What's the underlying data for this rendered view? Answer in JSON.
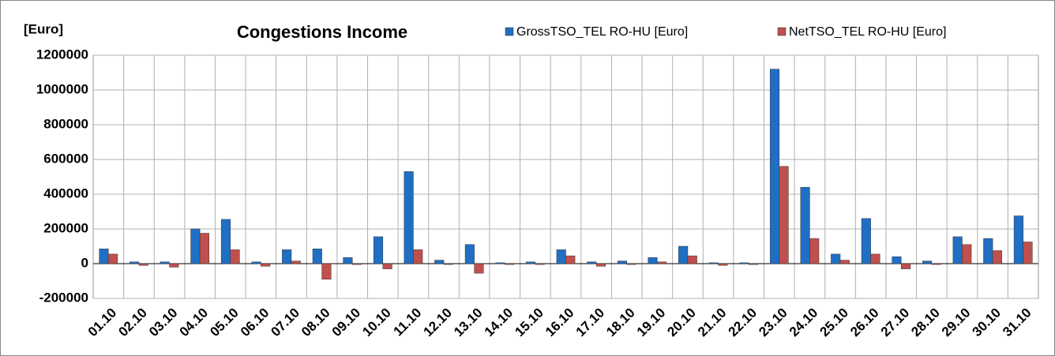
{
  "chart_data": {
    "type": "bar",
    "title": "Congestions Income",
    "y_label": "[Euro]",
    "categories": [
      "01.10",
      "02.10",
      "03.10",
      "04.10",
      "05.10",
      "06.10",
      "07.10",
      "08.10",
      "09.10",
      "10.10",
      "11.10",
      "12.10",
      "13.10",
      "14.10",
      "15.10",
      "16.10",
      "17.10",
      "18.10",
      "19.10",
      "20.10",
      "21.10",
      "22.10",
      "23.10",
      "24.10",
      "25.10",
      "26.10",
      "27.10",
      "28.10",
      "29.10",
      "30.10",
      "31.10"
    ],
    "series": [
      {
        "name": "GrossTSO_TEL RO-HU [Euro]",
        "color": "#1f6fc5",
        "values": [
          85000,
          10000,
          10000,
          200000,
          255000,
          10000,
          80000,
          85000,
          35000,
          155000,
          530000,
          20000,
          110000,
          5000,
          10000,
          80000,
          10000,
          15000,
          35000,
          100000,
          5000,
          5000,
          1120000,
          440000,
          55000,
          260000,
          40000,
          15000,
          155000,
          145000,
          275000
        ]
      },
      {
        "name": "NetTSO_TEL RO-HU [Euro]",
        "color": "#c0504d",
        "values": [
          55000,
          -10000,
          -20000,
          175000,
          80000,
          -15000,
          15000,
          -90000,
          -5000,
          -30000,
          80000,
          -5000,
          -55000,
          -5000,
          -5000,
          45000,
          -15000,
          -5000,
          10000,
          45000,
          -10000,
          -5000,
          560000,
          145000,
          20000,
          55000,
          -30000,
          -5000,
          110000,
          75000,
          125000
        ]
      }
    ],
    "ylim": [
      -200000,
      1200000
    ],
    "yticks": [
      -200000,
      0,
      200000,
      400000,
      600000,
      800000,
      1000000,
      1200000
    ],
    "grid": true
  }
}
